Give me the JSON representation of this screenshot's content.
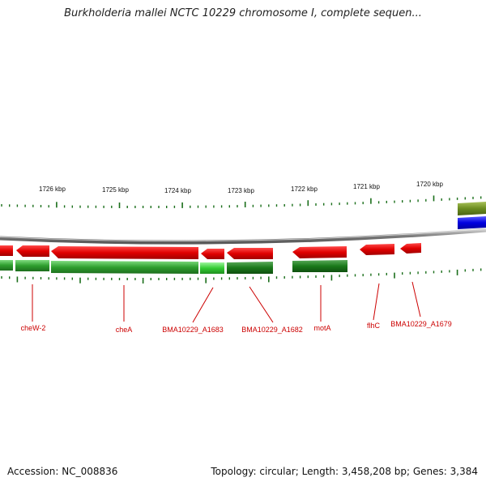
{
  "title": "Burkholderia mallei NCTC 10229 chromosome I, complete sequen...",
  "accession": "Accession: NC_008836",
  "topology": "Topology: circular; Length: 3,458,208 bp; Genes: 3,384",
  "ruler": {
    "labels": [
      "1726 kbp",
      "1725 kbp",
      "1724 kbp",
      "1723 kbp",
      "1722 kbp",
      "1721 kbp",
      "1720 kbp"
    ]
  },
  "genes": [
    {
      "label": "cheW-2"
    },
    {
      "label": "cheA"
    },
    {
      "label": "BMA10229_A1683"
    },
    {
      "label": "BMA10229_A1682"
    },
    {
      "label": "motA"
    },
    {
      "label": "flhC"
    },
    {
      "label": "BMA10229_A1679"
    }
  ],
  "colors": {
    "gene": "#e30000",
    "cds": "#2e9e2e",
    "cds_light": "#33cc33",
    "cds_dark": "#1a7a1a",
    "backbone": "#8a8a8a",
    "label": "#cc0000",
    "tick": "#1a6e1a",
    "olive": "#6b8c1f",
    "blue": "#0000e0"
  }
}
